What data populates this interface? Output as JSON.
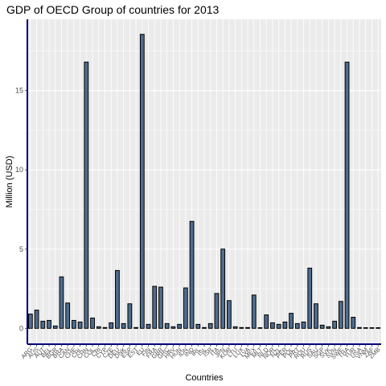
{
  "chart_data": {
    "type": "bar",
    "title": "GDP of OECD Group of countries for 2013",
    "xlabel": "Countries",
    "ylabel": "Million (USD)",
    "ylim": [
      -1,
      19.5
    ],
    "yticks": [
      0,
      5,
      10,
      15
    ],
    "grid": true,
    "colors": {
      "bar_fill": "#4f6d8f",
      "bar_stroke": "#000000",
      "panel_bg": "#ebebeb",
      "grid": "#ffffff",
      "axis_line": "#000080"
    },
    "categories": [
      "ARG",
      "AUS",
      "AUT",
      "BEL",
      "BGR",
      "BRA",
      "CAN",
      "CHE",
      "CHL",
      "CHN",
      "COL",
      "CRI",
      "CYP",
      "CZE",
      "DEU",
      "DNK",
      "ESP",
      "EST",
      "EU",
      "FIN",
      "FRA",
      "GBR",
      "GRC",
      "HRV",
      "HUN",
      "IDN",
      "IND",
      "IRL",
      "ISL",
      "ISR",
      "ITA",
      "JPN",
      "KOR",
      "LTU",
      "LUX",
      "LVA",
      "MEX",
      "MLT",
      "NLD",
      "NOR",
      "NZL",
      "PER",
      "POL",
      "PRT",
      "ROU",
      "RUS",
      "SAU",
      "SGP",
      "SVK",
      "SVN",
      "SWE",
      "THA",
      "TUR",
      "USA",
      "VNM",
      "ZAF",
      "ZMB"
    ],
    "values": [
      0.9,
      1.15,
      0.45,
      0.5,
      0.15,
      3.25,
      1.6,
      0.5,
      0.4,
      16.8,
      0.65,
      0.1,
      0.05,
      0.35,
      3.65,
      0.3,
      1.55,
      0.05,
      18.55,
      0.25,
      2.65,
      2.6,
      0.3,
      0.1,
      0.25,
      2.55,
      6.75,
      0.25,
      0.05,
      0.3,
      2.2,
      5.0,
      1.75,
      0.1,
      0.05,
      0.05,
      2.1,
      0.02,
      0.85,
      0.35,
      0.25,
      0.4,
      0.95,
      0.3,
      0.4,
      3.8,
      1.55,
      0.2,
      0.1,
      0.45,
      1.7,
      16.8,
      0.7,
      0.05,
      0.02,
      0.02,
      0.02
    ]
  }
}
